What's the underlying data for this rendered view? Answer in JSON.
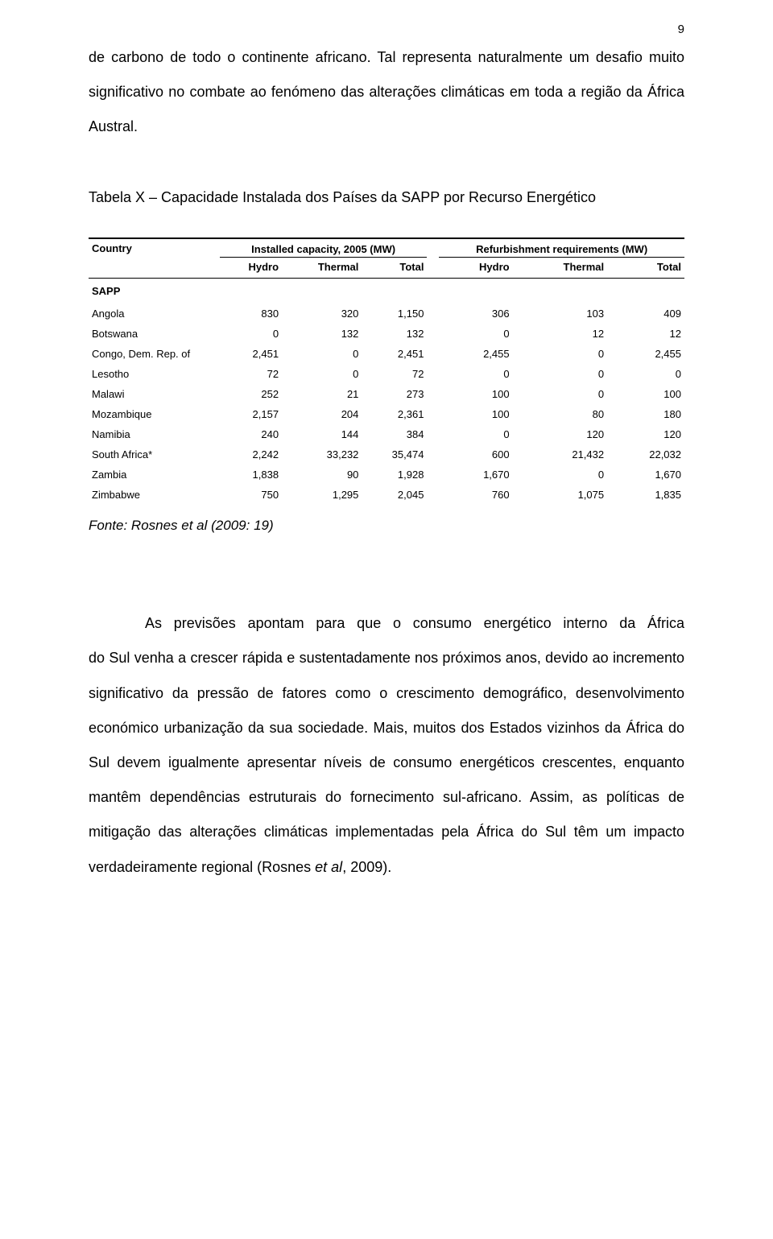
{
  "page_number": "9",
  "para1": "de carbono de todo o continente africano. Tal representa naturalmente um desafio muito significativo no combate ao fenómeno das alterações climáticas em toda a região da África Austral.",
  "table_title": "Tabela X – Capacidade Instalada dos Países da SAPP por Recurso Energético",
  "table": {
    "header_country": "Country",
    "group1": "Installed capacity, 2005 (MW)",
    "group2": "Refurbishment requirements (MW)",
    "subheaders": [
      "Hydro",
      "Thermal",
      "Total",
      "Hydro",
      "Thermal",
      "Total"
    ],
    "section": "SAPP",
    "rows": [
      {
        "country": "Angola",
        "v": [
          "830",
          "320",
          "1,150",
          "306",
          "103",
          "409"
        ]
      },
      {
        "country": "Botswana",
        "v": [
          "0",
          "132",
          "132",
          "0",
          "12",
          "12"
        ]
      },
      {
        "country": "Congo, Dem. Rep. of",
        "v": [
          "2,451",
          "0",
          "2,451",
          "2,455",
          "0",
          "2,455"
        ]
      },
      {
        "country": "Lesotho",
        "v": [
          "72",
          "0",
          "72",
          "0",
          "0",
          "0"
        ]
      },
      {
        "country": "Malawi",
        "v": [
          "252",
          "21",
          "273",
          "100",
          "0",
          "100"
        ]
      },
      {
        "country": "Mozambique",
        "v": [
          "2,157",
          "204",
          "2,361",
          "100",
          "80",
          "180"
        ]
      },
      {
        "country": "Namibia",
        "v": [
          "240",
          "144",
          "384",
          "0",
          "120",
          "120"
        ]
      },
      {
        "country": "South Africa*",
        "v": [
          "2,242",
          "33,232",
          "35,474",
          "600",
          "21,432",
          "22,032"
        ]
      },
      {
        "country": "Zambia",
        "v": [
          "1,838",
          "90",
          "1,928",
          "1,670",
          "0",
          "1,670"
        ]
      },
      {
        "country": "Zimbabwe",
        "v": [
          "750",
          "1,295",
          "2,045",
          "760",
          "1,075",
          "1,835"
        ]
      }
    ]
  },
  "fonte": "Fonte: Rosnes et al (2009: 19)",
  "para2_prefix": "As previsões apontam para que o consumo energético interno da África",
  "para2_rest": "do Sul venha a crescer rápida e sustentadamente nos próximos anos, devido ao incremento significativo da pressão de fatores como o crescimento demográfico, desenvolvimento económico urbanização da sua sociedade. Mais, muitos dos Estados vizinhos da África do Sul devem igualmente apresentar níveis de consumo energéticos crescentes, enquanto mantêm dependências estruturais do fornecimento sul-africano. Assim, as políticas de mitigação das alterações climáticas implementadas pela África do Sul têm um impacto verdadeiramente regional (Rosnes ",
  "para2_em": "et al",
  "para2_tail": ", 2009)."
}
